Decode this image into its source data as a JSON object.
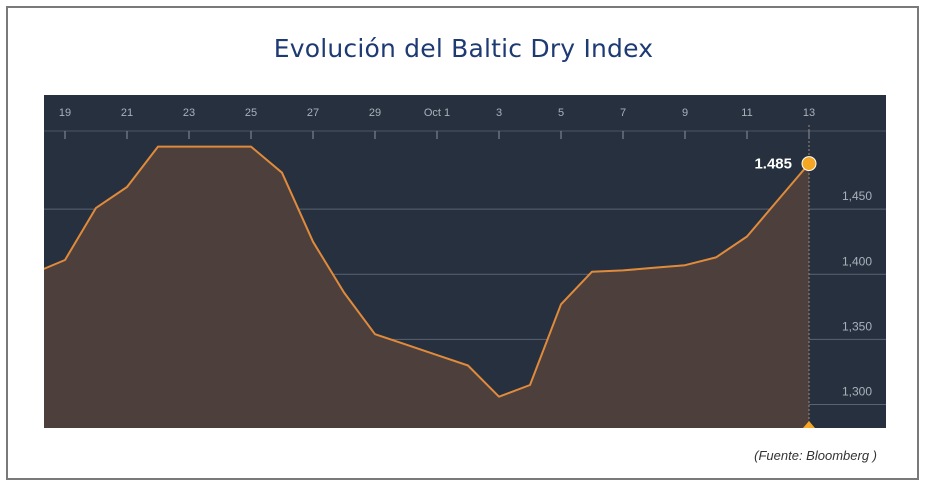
{
  "title": "Evolución del Baltic Dry Index",
  "source": "(Fuente: Bloomberg )",
  "colors": {
    "background": "#26303f",
    "line": "#e08b3c",
    "area": "#4d3f3b",
    "marker": "#f5a623",
    "text": "#aab1bb"
  },
  "chart_data": {
    "type": "area",
    "title": "Evolución del Baltic Dry Index",
    "x_tick_labels": [
      "19",
      "21",
      "23",
      "25",
      "27",
      "29",
      "Oct 1",
      "3",
      "5",
      "7",
      "9",
      "11",
      "13"
    ],
    "y_ticks": [
      "1,300",
      "1,350",
      "1,400",
      "1,450"
    ],
    "ylim": [
      1282,
      1510
    ],
    "y_tick_values": [
      1300,
      1350,
      1400,
      1450
    ],
    "grid": true,
    "series": [
      {
        "x": [
          "Sep 18",
          "Sep 19",
          "Sep 20",
          "Sep 21",
          "Sep 22",
          "Sep 23",
          "Sep 24",
          "Sep 25",
          "Sep 26",
          "Sep 27",
          "Sep 28",
          "Sep 29",
          "Sep 30",
          "Oct 1",
          "Oct 2",
          "Oct 3",
          "Oct 4",
          "Oct 5",
          "Oct 6",
          "Oct 7",
          "Oct 8",
          "Oct 9",
          "Oct 10",
          "Oct 11",
          "Oct 12",
          "Oct 13"
        ],
        "values": [
          1401,
          1411,
          1451,
          1467,
          1498,
          1498,
          1498,
          1498,
          1478,
          1425,
          1386,
          1354,
          1346,
          1338,
          1330,
          1306,
          1315,
          1377,
          1402,
          1403,
          1405,
          1407,
          1413,
          1429,
          1457,
          1485
        ]
      }
    ],
    "last_value_label": "1.485"
  }
}
